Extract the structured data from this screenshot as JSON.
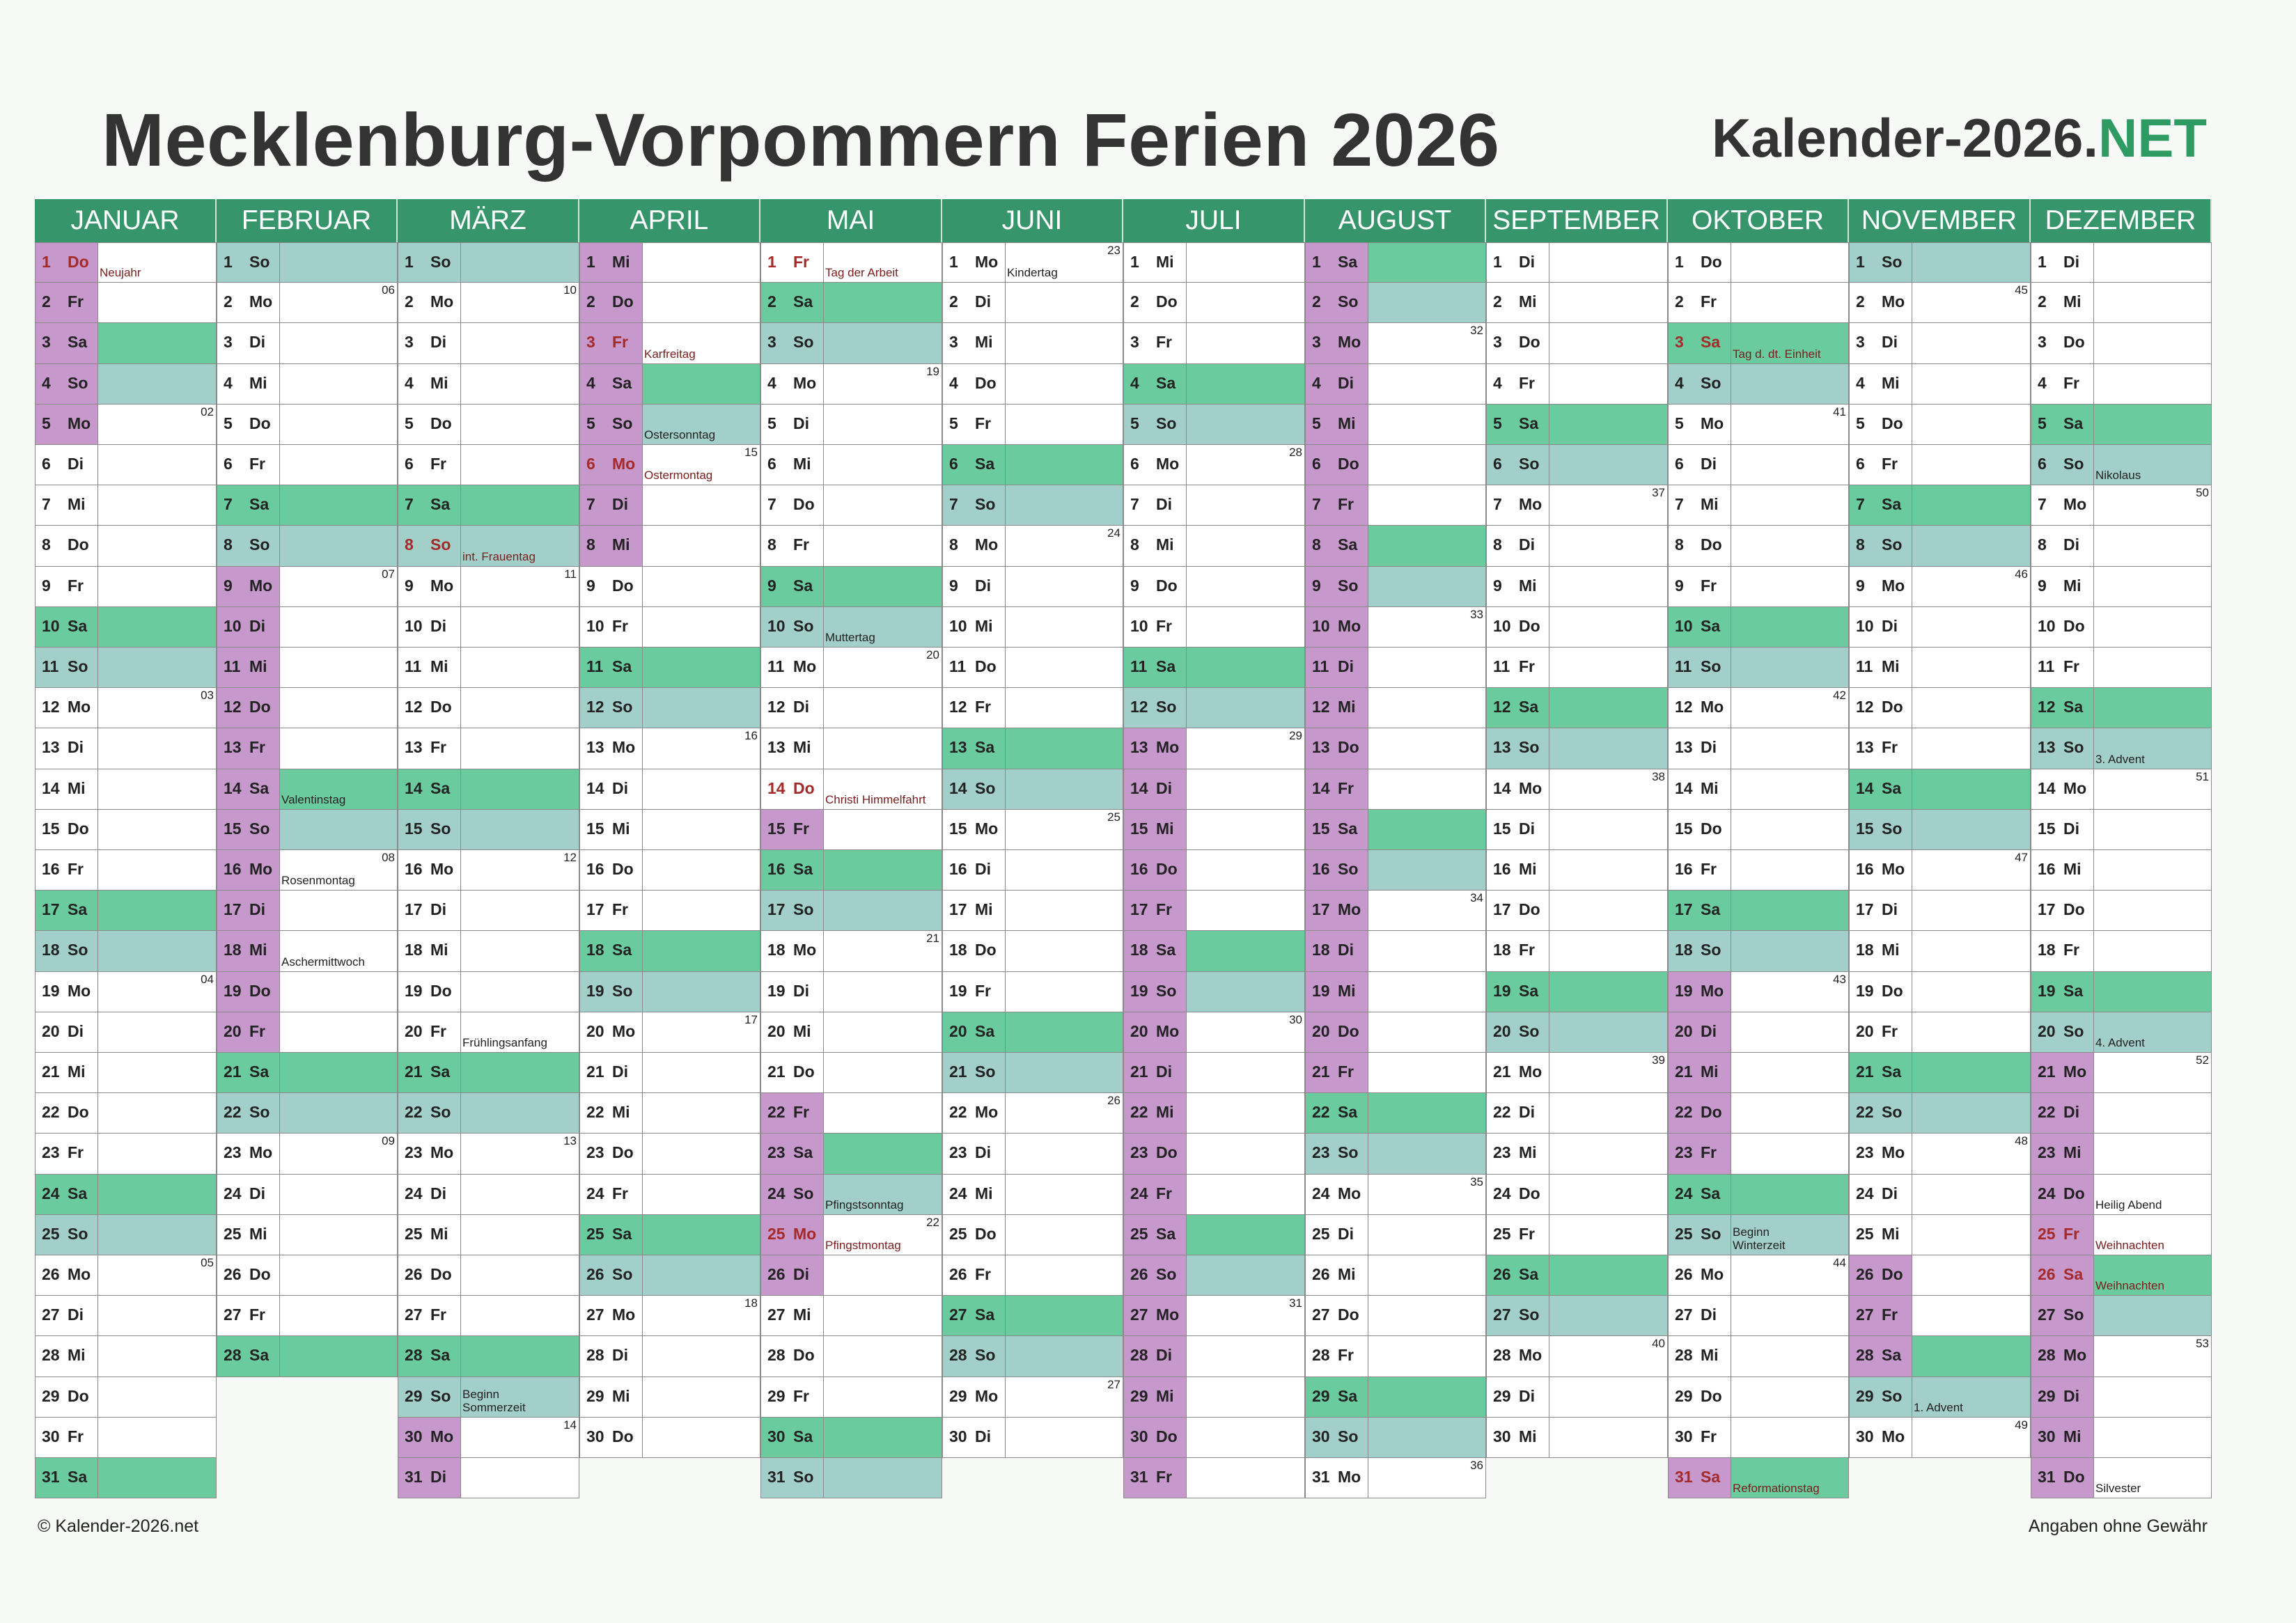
{
  "title": "Mecklenburg-Vorpommern Ferien 2026",
  "brand": {
    "main": "Kalender-2026.",
    "accent": "NET"
  },
  "footer": {
    "left": "© Kalender-2026.net",
    "right": "Angaben ohne Gewähr"
  },
  "colors": {
    "header": "#36956a",
    "saturday": "#6acc9e",
    "sunday": "#a3cfcb",
    "ferien": "#c698cc",
    "holiday_text": "#a52a2a"
  },
  "year": 2026,
  "weekday_abbr": [
    "So",
    "Mo",
    "Di",
    "Mi",
    "Do",
    "Fr",
    "Sa"
  ],
  "months": [
    {
      "name": "JANUAR",
      "days": 31,
      "ferien": [
        1,
        2,
        3,
        4,
        5
      ],
      "holidays": {
        "1": "Neujahr"
      },
      "notes": {}
    },
    {
      "name": "FEBRUAR",
      "days": 28,
      "ferien": [
        9,
        10,
        11,
        12,
        13,
        14,
        15,
        16,
        17,
        18,
        19,
        20
      ],
      "holidays": {},
      "notes": {
        "14": "Valentinstag",
        "16": "Rosenmontag",
        "18": "Aschermittwoch"
      }
    },
    {
      "name": "MÄRZ",
      "days": 31,
      "ferien": [
        30,
        31
      ],
      "holidays": {
        "8": "int. Frauentag"
      },
      "notes": {
        "20": "Frühlingsanfang",
        "29": "Beginn\nSommerzeit"
      }
    },
    {
      "name": "APRIL",
      "days": 30,
      "ferien": [
        1,
        2,
        3,
        4,
        5,
        6,
        7,
        8
      ],
      "holidays": {
        "3": "Karfreitag",
        "6": "Ostermontag"
      },
      "notes": {
        "5": "Ostersonntag"
      }
    },
    {
      "name": "MAI",
      "days": 31,
      "ferien": [
        15,
        22,
        23,
        24,
        25,
        26
      ],
      "holidays": {
        "1": "Tag der Arbeit",
        "14": "Christi Himmelfahrt",
        "25": "Pfingstmontag"
      },
      "notes": {
        "10": "Muttertag",
        "24": "Pfingstsonntag"
      }
    },
    {
      "name": "JUNI",
      "days": 30,
      "ferien": [],
      "holidays": {},
      "notes": {
        "1": "Kindertag"
      }
    },
    {
      "name": "JULI",
      "days": 31,
      "ferien": [
        13,
        14,
        15,
        16,
        17,
        18,
        19,
        20,
        21,
        22,
        23,
        24,
        25,
        26,
        27,
        28,
        29,
        30,
        31
      ],
      "holidays": {},
      "notes": {}
    },
    {
      "name": "AUGUST",
      "days": 31,
      "ferien": [
        1,
        2,
        3,
        4,
        5,
        6,
        7,
        8,
        9,
        10,
        11,
        12,
        13,
        14,
        15,
        16,
        17,
        18,
        19,
        20,
        21
      ],
      "holidays": {},
      "notes": {}
    },
    {
      "name": "SEPTEMBER",
      "days": 30,
      "ferien": [],
      "holidays": {},
      "notes": {}
    },
    {
      "name": "OKTOBER",
      "days": 31,
      "ferien": [
        19,
        20,
        21,
        22,
        23,
        31
      ],
      "holidays": {
        "3": "Tag d. dt. Einheit",
        "31": "Reformationstag"
      },
      "notes": {
        "25": "Beginn\nWinterzeit"
      }
    },
    {
      "name": "NOVEMBER",
      "days": 30,
      "ferien": [
        26,
        27,
        28
      ],
      "holidays": {},
      "notes": {
        "29": "1. Advent"
      }
    },
    {
      "name": "DEZEMBER",
      "days": 31,
      "ferien": [
        21,
        22,
        23,
        24,
        25,
        26,
        27,
        28,
        29,
        30,
        31
      ],
      "holidays": {
        "25": "Weihnachten",
        "26": "Weihnachten"
      },
      "notes": {
        "6": "Nikolaus",
        "13": "3. Advent",
        "20": "4. Advent",
        "24": "Heilig Abend",
        "31": "Silvester"
      }
    }
  ]
}
